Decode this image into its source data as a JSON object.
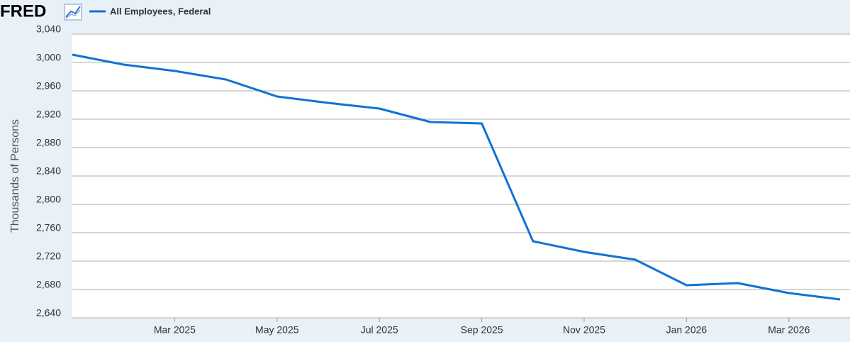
{
  "chart_data": {
    "type": "line",
    "brand": "FRED",
    "y_label": "Thousands of Persons",
    "x": [
      "2025-01",
      "2025-02",
      "2025-03",
      "2025-04",
      "2025-05",
      "2025-06",
      "2025-07",
      "2025-08",
      "2025-09",
      "2025-10",
      "2025-11",
      "2025-12",
      "2026-01",
      "2026-02",
      "2026-03",
      "2026-04"
    ],
    "series": [
      {
        "name": "All Employees, Federal",
        "color": "#1271d6",
        "values": [
          3011,
          2997,
          2988,
          2976,
          2952,
          2943,
          2935,
          2916,
          2914,
          2748,
          2733,
          2722,
          2686,
          2689,
          2675,
          2666
        ]
      }
    ],
    "xlim": [
      "2025-01",
      "2026-04"
    ],
    "xticks": [
      {
        "value": "2025-03",
        "label": "Mar 2025"
      },
      {
        "value": "2025-05",
        "label": "May 2025"
      },
      {
        "value": "2025-07",
        "label": "Jul 2025"
      },
      {
        "value": "2025-09",
        "label": "Sep 2025"
      },
      {
        "value": "2025-11",
        "label": "Nov 2025"
      },
      {
        "value": "2026-01",
        "label": "Jan 2026"
      },
      {
        "value": "2026-03",
        "label": "Mar 2026"
      }
    ],
    "ylim": [
      2640,
      3040
    ],
    "yticks": [
      {
        "value": 2640,
        "label": "2,640"
      },
      {
        "value": 2680,
        "label": "2,680"
      },
      {
        "value": 2720,
        "label": "2,720"
      },
      {
        "value": 2760,
        "label": "2,760"
      },
      {
        "value": 2800,
        "label": "2,800"
      },
      {
        "value": 2840,
        "label": "2,840"
      },
      {
        "value": 2880,
        "label": "2,880"
      },
      {
        "value": 2920,
        "label": "2,920"
      },
      {
        "value": 2960,
        "label": "2,960"
      },
      {
        "value": 3000,
        "label": "3,000"
      },
      {
        "value": 3040,
        "label": "3,040"
      }
    ],
    "grid": true
  }
}
